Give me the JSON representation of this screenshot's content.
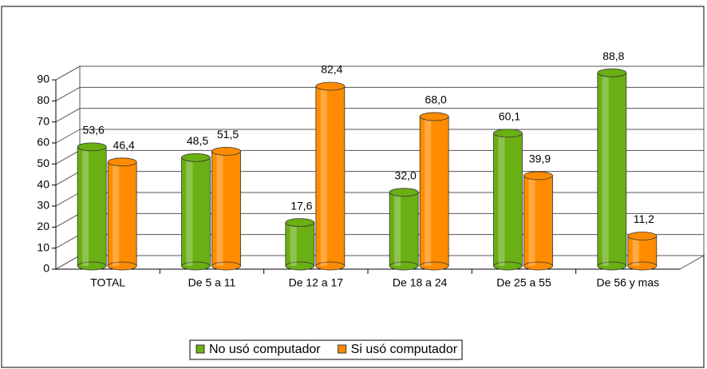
{
  "chart_data": {
    "type": "bar",
    "categories": [
      "TOTAL",
      "De 5 a 11",
      "De 12 a 17",
      "De 18 a 24",
      "De 25 a 55",
      "De 56 y mas"
    ],
    "series": [
      {
        "name": "No usó computador",
        "color": "#6aaf14",
        "values": [
          53.6,
          48.5,
          17.6,
          32.0,
          60.1,
          88.8
        ],
        "value_labels": [
          "53,6",
          "48,5",
          "17,6",
          "32,0",
          "60,1",
          "88,8"
        ]
      },
      {
        "name": "Si usó computador",
        "color": "#ff8c00",
        "values": [
          46.4,
          51.5,
          82.4,
          68.0,
          39.9,
          11.2
        ],
        "value_labels": [
          "46,4",
          "51,5",
          "82,4",
          "68,0",
          "39,9",
          "11,2"
        ]
      }
    ],
    "ylim": [
      0,
      90
    ],
    "yticks": [
      0,
      10,
      20,
      30,
      40,
      50,
      60,
      70,
      80,
      90
    ],
    "grid": true,
    "legend": "bottom"
  }
}
